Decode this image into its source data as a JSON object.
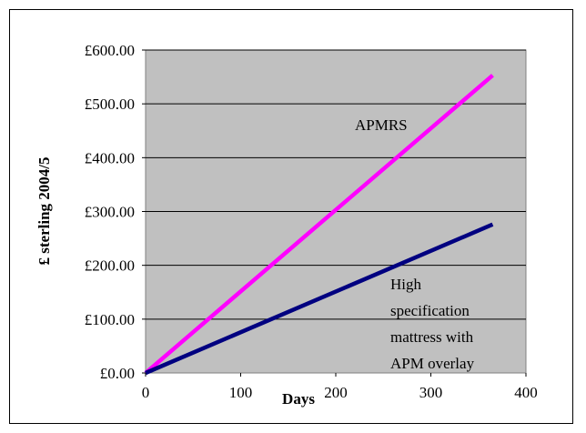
{
  "chart_data": {
    "type": "line",
    "title": "",
    "xlabel": "Days",
    "ylabel": "£ sterling 2004/5",
    "xlim": [
      0,
      400
    ],
    "ylim": [
      0,
      600
    ],
    "x_ticks": [
      0,
      100,
      200,
      300,
      400
    ],
    "y_ticks": [
      0,
      100,
      200,
      300,
      400,
      500,
      600
    ],
    "y_tick_labels": [
      "£0.00",
      "£100.00",
      "£200.00",
      "£300.00",
      "£400.00",
      "£500.00",
      "£600.00"
    ],
    "grid": "horizontal major gridlines",
    "plot_background": "#c0c0c0",
    "series": [
      {
        "name": "APMRS",
        "color": "#ff00ff",
        "x": [
          0,
          365
        ],
        "y": [
          0,
          553
        ]
      },
      {
        "name": "High specification mattress with APM overlay",
        "color": "#000080",
        "x": [
          0,
          365
        ],
        "y": [
          0,
          276
        ]
      }
    ],
    "annotations": [
      {
        "text": "APMRS",
        "series": 0
      },
      {
        "lines": [
          "High",
          "specification",
          "mattress with",
          "APM overlay"
        ],
        "series": 1
      }
    ]
  }
}
